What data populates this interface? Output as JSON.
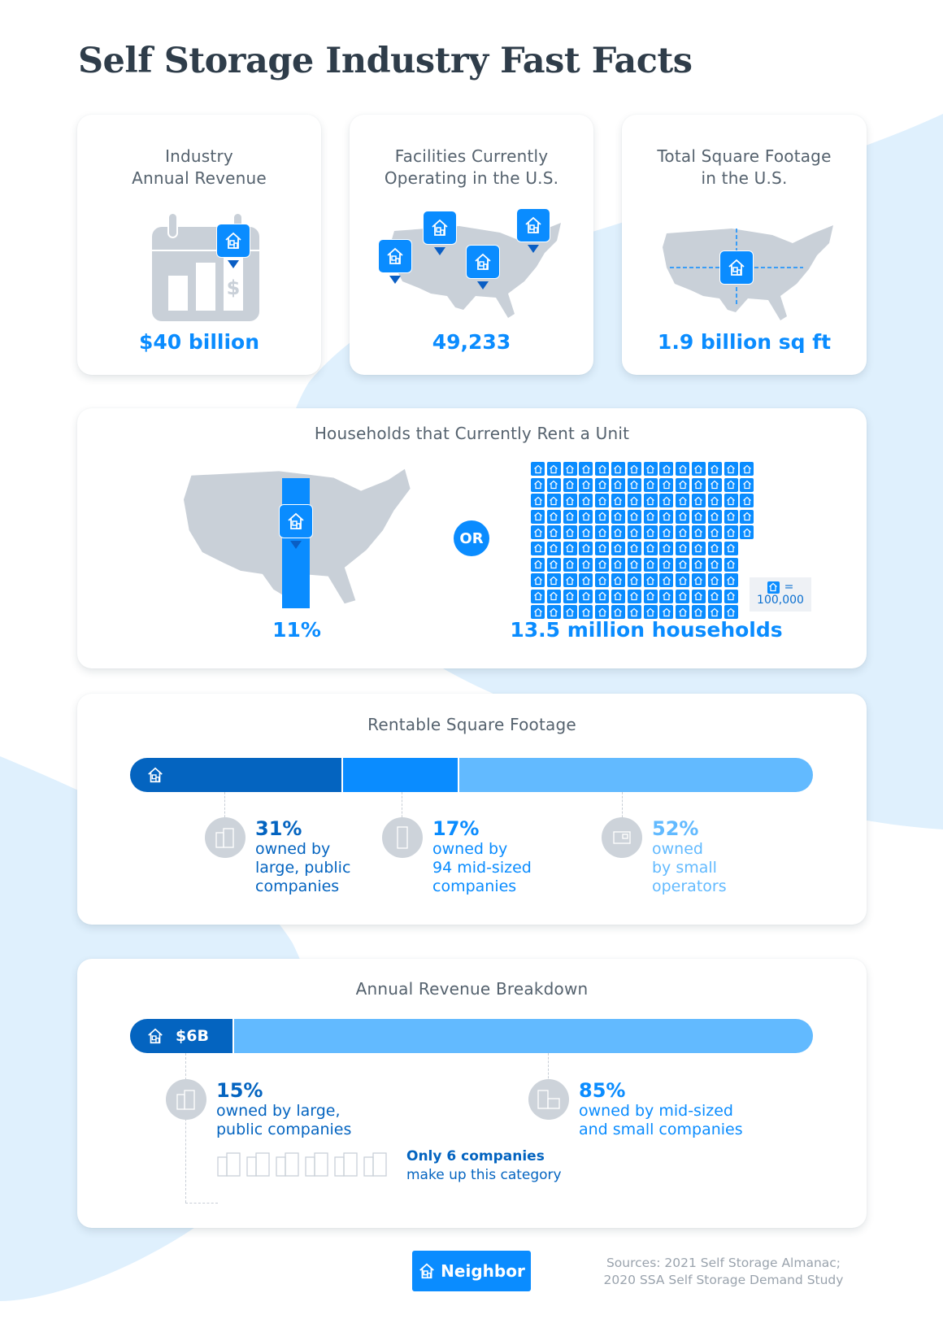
{
  "title": "Self Storage Industry Fast Facts",
  "colors": {
    "accent": "#0a8cff",
    "dark_blue": "#0464c0",
    "light_blue": "#62baff",
    "map_gray": "#c9d0d8",
    "text_gray": "#55626e",
    "title": "#2f3d4a",
    "bg_blob": "#dff0fd"
  },
  "fact_cards": [
    {
      "title_line1": "Industry",
      "title_line2": "Annual Revenue",
      "value": "$40 billion",
      "icon": "calendar-bar-chart-icon"
    },
    {
      "title_line1": "Facilities Currently",
      "title_line2": "Operating in the U.S.",
      "value": "49,233",
      "icon": "us-map-pins-icon"
    },
    {
      "title_line1": "Total Square Footage",
      "title_line2": "in the U.S.",
      "value": "1.9 billion sq ft",
      "icon": "us-map-measure-icon"
    }
  ],
  "households": {
    "title": "Households that Currently Rent a Unit",
    "percent_value": "11%",
    "or_label": "OR",
    "count_value": "13.5 million households",
    "icon_grid": {
      "rows_of_14": 5,
      "rows_of_13": 5,
      "total_icons": 135
    },
    "legend_equals": "=",
    "legend_value": "100,000"
  },
  "rentable": {
    "title": "Rentable Square Footage",
    "segments": [
      {
        "pct": "31%",
        "desc": "owned by\nlarge, public\ncompanies",
        "color": "#0464c0",
        "share": 31,
        "icon": "office-buildings-icon"
      },
      {
        "pct": "17%",
        "desc": "owned by\n94 mid-sized\ncompanies",
        "color": "#0a8cff",
        "share": 17,
        "icon": "tall-building-icon"
      },
      {
        "pct": "52%",
        "desc": "owned\nby small\noperators",
        "color": "#62baff",
        "share": 52,
        "icon": "storefront-icon"
      }
    ]
  },
  "revenue": {
    "title": "Annual Revenue Breakdown",
    "bar_label": "$6B",
    "segments": [
      {
        "pct": "15%",
        "desc": "owned by large,\npublic companies",
        "color": "#0464c0",
        "share": 15,
        "icon": "office-buildings-icon"
      },
      {
        "pct": "85%",
        "desc": "owned by mid-sized\nand small companies",
        "color": "#62baff",
        "share": 85,
        "icon": "building-store-icon"
      }
    ],
    "note_bold": "Only 6 companies",
    "note_rest": "make up this category",
    "company_icon_count": 6
  },
  "footer": {
    "brand": "Neighbor",
    "sources_line1": "Sources: 2021 Self Storage Almanac;",
    "sources_line2": "2020 SSA Self Storage Demand Study"
  },
  "chart_data": [
    {
      "type": "bar",
      "title": "Rentable Square Footage",
      "orientation": "horizontal-stacked",
      "categories": [
        "large, public companies",
        "94 mid-sized companies",
        "small operators"
      ],
      "values": [
        31,
        17,
        52
      ],
      "unit": "%"
    },
    {
      "type": "bar",
      "title": "Annual Revenue Breakdown",
      "orientation": "horizontal-stacked",
      "categories": [
        "large, public companies ($6B)",
        "mid-sized and small companies"
      ],
      "values": [
        15,
        85
      ],
      "unit": "%"
    }
  ]
}
